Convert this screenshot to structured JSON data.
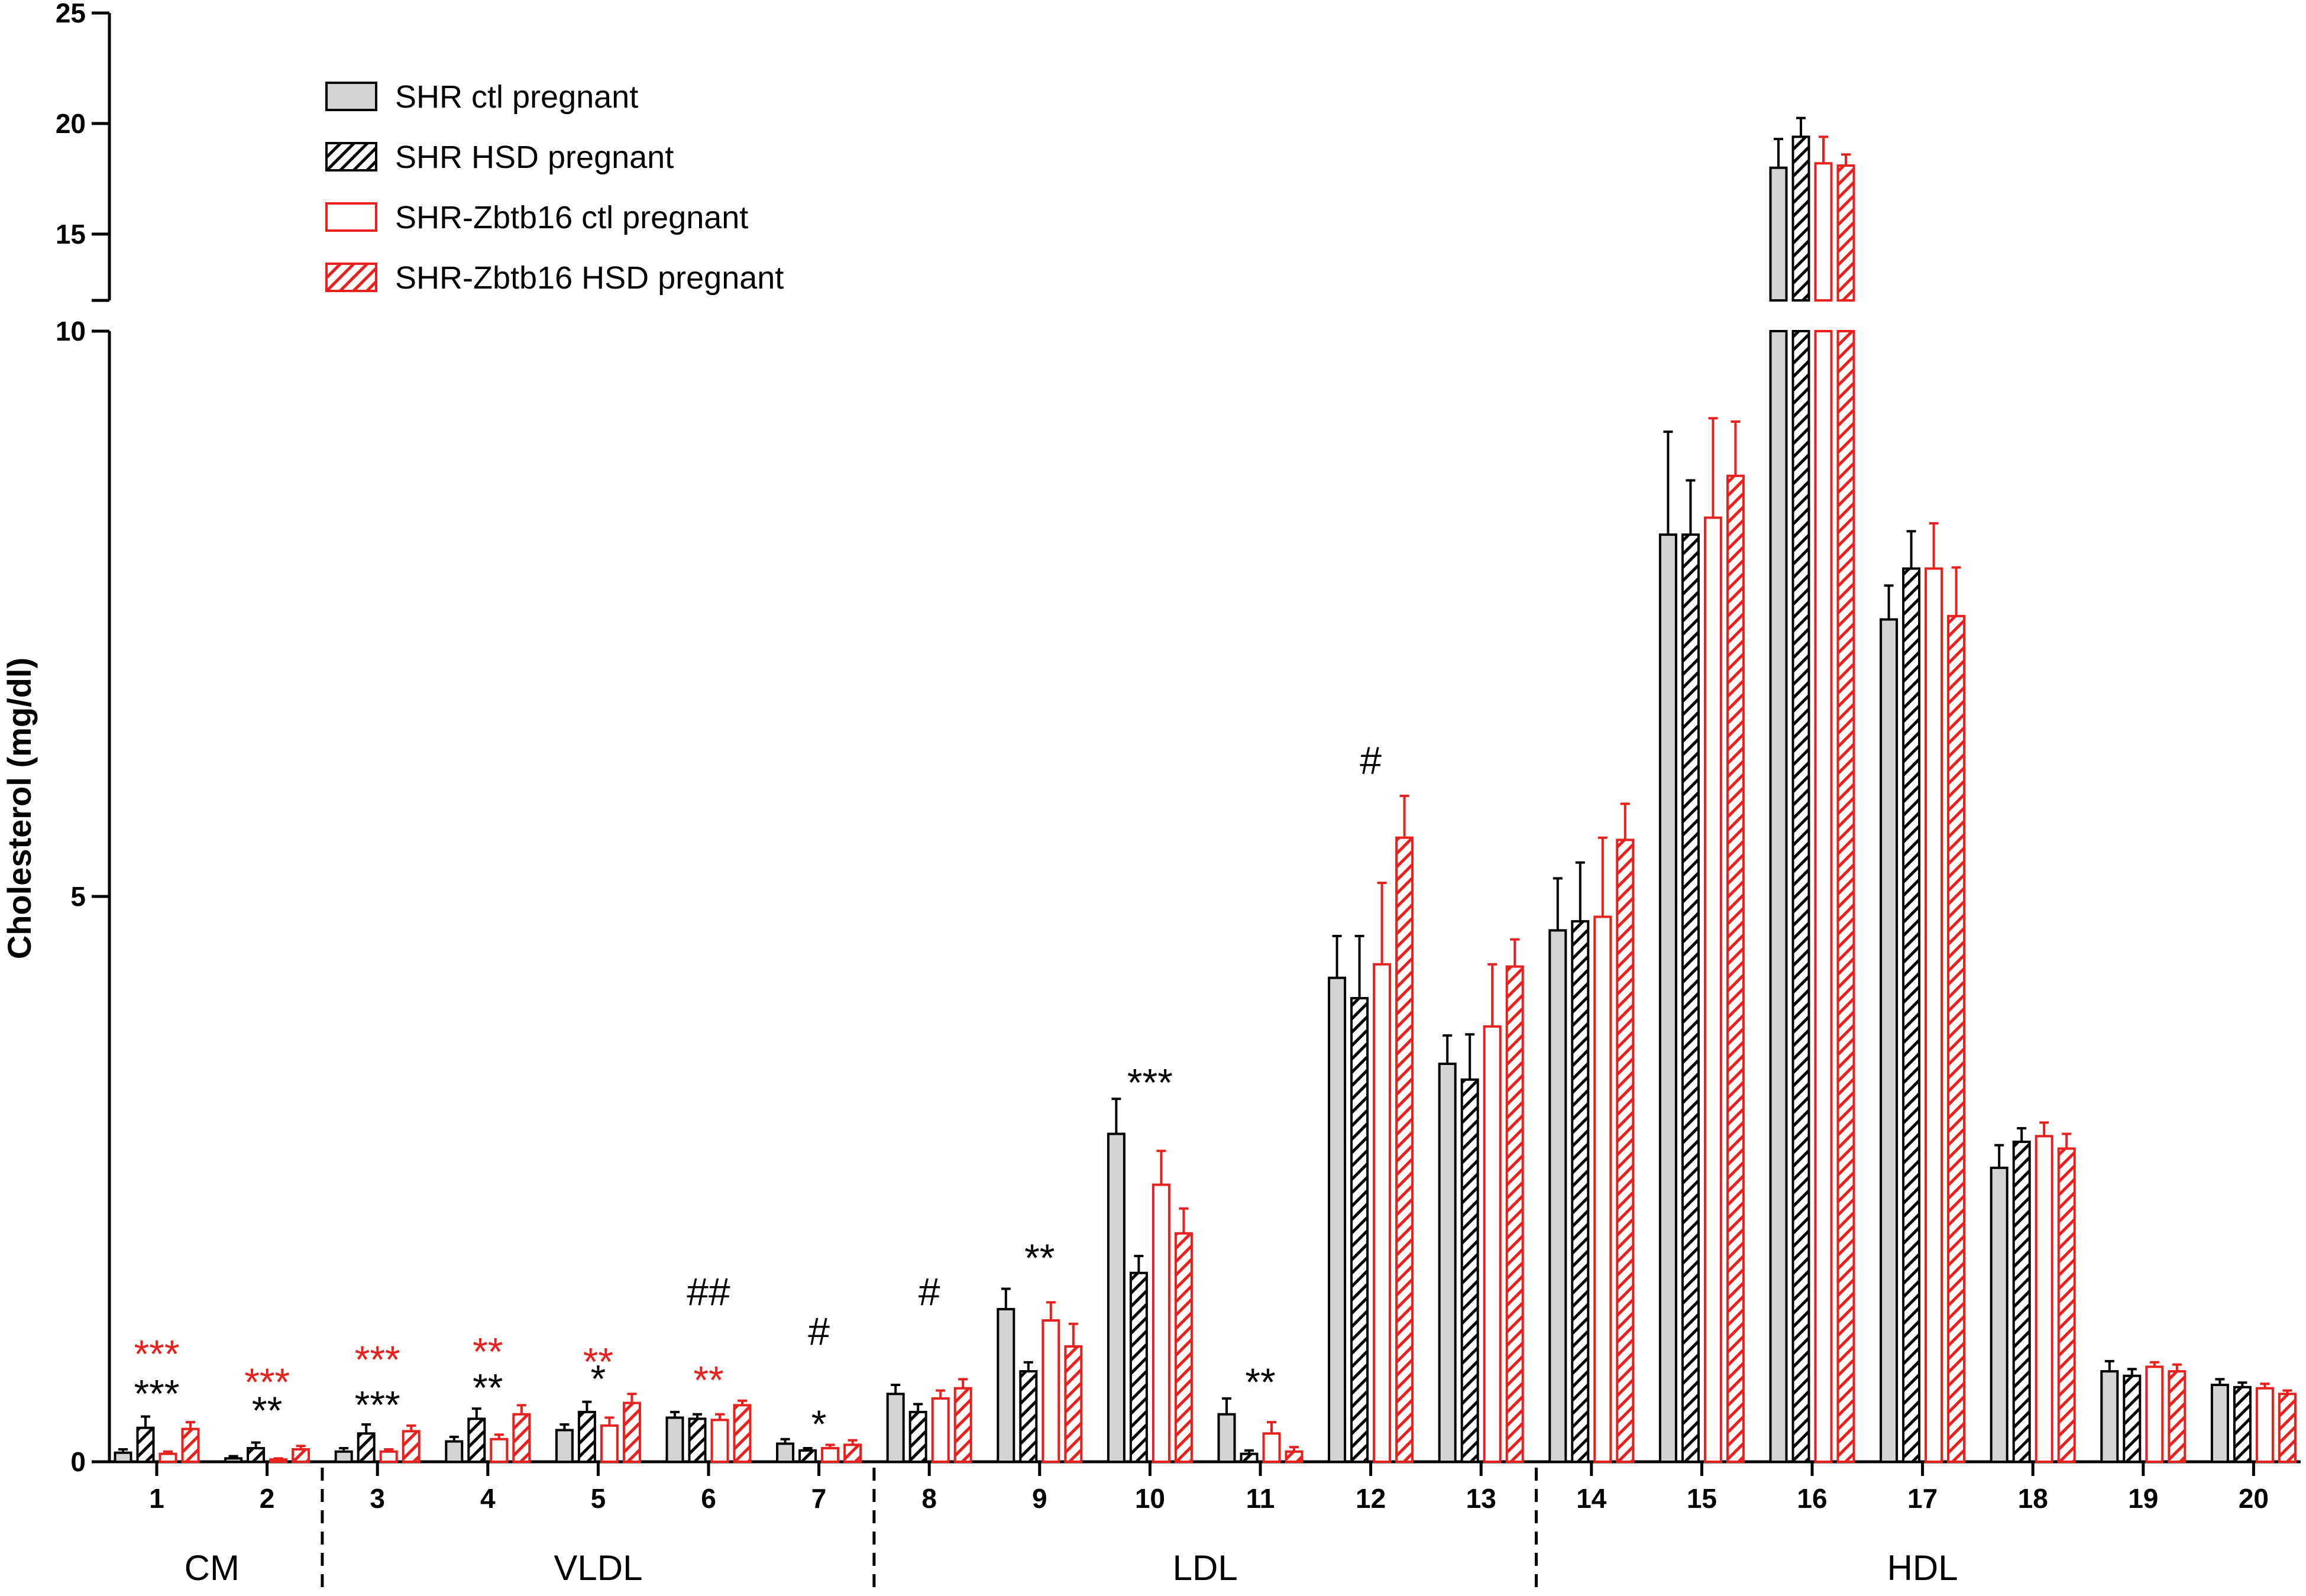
{
  "chart_data": {
    "type": "bar",
    "ylabel": "Cholesterol (mg/dl)",
    "ylim_lower": [
      0,
      10
    ],
    "ylim_upper": [
      12,
      25
    ],
    "y_ticks_lower": [
      0,
      5,
      10
    ],
    "y_ticks_upper": [
      15,
      20,
      25
    ],
    "y_tick_labels": {
      "0": "0",
      "5": "5",
      "10": "10",
      "15": "15",
      "20": "20",
      "25": "25"
    },
    "categories": [
      "1",
      "2",
      "3",
      "4",
      "5",
      "6",
      "7",
      "8",
      "9",
      "10",
      "11",
      "12",
      "13",
      "14",
      "15",
      "16",
      "17",
      "18",
      "19",
      "20"
    ],
    "series": [
      {
        "name": "SHR ctl pregnant",
        "style": "solid-gray",
        "color": "#000000",
        "values": [
          0.08,
          0.03,
          0.09,
          0.18,
          0.28,
          0.39,
          0.16,
          0.6,
          1.35,
          2.9,
          0.42,
          4.28,
          3.52,
          4.7,
          8.2,
          18.0,
          7.45,
          2.6,
          0.8,
          0.68
        ],
        "errors": [
          0.03,
          0.02,
          0.03,
          0.04,
          0.05,
          0.05,
          0.04,
          0.08,
          0.18,
          0.31,
          0.14,
          0.37,
          0.25,
          0.46,
          0.91,
          1.3,
          0.3,
          0.2,
          0.09,
          0.05
        ]
      },
      {
        "name": "SHR HSD pregnant",
        "style": "hatched-black",
        "color": "#000000",
        "values": [
          0.3,
          0.12,
          0.25,
          0.38,
          0.44,
          0.38,
          0.1,
          0.44,
          0.8,
          1.67,
          0.07,
          4.1,
          3.38,
          4.78,
          8.2,
          19.4,
          7.9,
          2.83,
          0.76,
          0.66
        ],
        "errors": [
          0.1,
          0.05,
          0.08,
          0.09,
          0.09,
          0.04,
          0.02,
          0.07,
          0.08,
          0.15,
          0.03,
          0.55,
          0.4,
          0.52,
          0.48,
          0.85,
          0.33,
          0.12,
          0.06,
          0.04
        ]
      },
      {
        "name": "SHR-Zbtb16 ctl pregnant",
        "style": "solid-white-red",
        "color": "#e8201e",
        "values": [
          0.07,
          0.02,
          0.09,
          0.2,
          0.32,
          0.37,
          0.12,
          0.56,
          1.25,
          2.45,
          0.25,
          4.4,
          3.85,
          4.82,
          8.35,
          18.2,
          7.9,
          2.88,
          0.84,
          0.65
        ],
        "errors": [
          0.02,
          0.01,
          0.02,
          0.04,
          0.07,
          0.05,
          0.03,
          0.07,
          0.16,
          0.3,
          0.1,
          0.72,
          0.55,
          0.7,
          0.88,
          1.2,
          0.4,
          0.12,
          0.04,
          0.04
        ]
      },
      {
        "name": "SHR-Zbtb16 HSD pregnant",
        "style": "hatched-red",
        "color": "#e8201e",
        "values": [
          0.29,
          0.11,
          0.27,
          0.42,
          0.52,
          0.5,
          0.15,
          0.65,
          1.02,
          2.02,
          0.09,
          5.52,
          4.38,
          5.5,
          8.72,
          18.1,
          7.48,
          2.77,
          0.8,
          0.6
        ],
        "errors": [
          0.06,
          0.03,
          0.05,
          0.08,
          0.08,
          0.04,
          0.04,
          0.08,
          0.2,
          0.22,
          0.04,
          0.37,
          0.24,
          0.32,
          0.48,
          0.5,
          0.43,
          0.13,
          0.06,
          0.03
        ]
      }
    ],
    "groups": [
      {
        "label": "CM",
        "from": 1,
        "to": 2
      },
      {
        "label": "VLDL",
        "from": 3,
        "to": 7
      },
      {
        "label": "LDL",
        "from": 8,
        "to": 13
      },
      {
        "label": "HDL",
        "from": 14,
        "to": 20
      }
    ],
    "annotations": [
      {
        "category": 1,
        "y": 0.6,
        "text": "***",
        "color": "#000000"
      },
      {
        "category": 1,
        "y": 0.95,
        "text": "***",
        "color": "#e8201e"
      },
      {
        "category": 2,
        "y": 0.45,
        "text": "**",
        "color": "#000000"
      },
      {
        "category": 2,
        "y": 0.7,
        "text": "***",
        "color": "#e8201e"
      },
      {
        "category": 3,
        "y": 0.5,
        "text": "***",
        "color": "#000000"
      },
      {
        "category": 3,
        "y": 0.9,
        "text": "***",
        "color": "#e8201e"
      },
      {
        "category": 4,
        "y": 0.65,
        "text": "**",
        "color": "#000000"
      },
      {
        "category": 4,
        "y": 0.97,
        "text": "**",
        "color": "#e8201e"
      },
      {
        "category": 5,
        "y": 0.73,
        "text": "*",
        "color": "#000000"
      },
      {
        "category": 5,
        "y": 0.88,
        "text": "**",
        "color": "#e8201e"
      },
      {
        "category": 6,
        "y": 1.5,
        "text": "##",
        "color": "#000000"
      },
      {
        "category": 6,
        "y": 0.72,
        "text": "**",
        "color": "#e8201e"
      },
      {
        "category": 7,
        "y": 0.33,
        "text": "*",
        "color": "#000000"
      },
      {
        "category": 7,
        "y": 1.15,
        "text": "#",
        "color": "#000000"
      },
      {
        "category": 8,
        "y": 1.5,
        "text": "#",
        "color": "#000000"
      },
      {
        "category": 9,
        "y": 1.8,
        "text": "**",
        "color": "#000000"
      },
      {
        "category": 10,
        "y": 3.35,
        "text": "***",
        "color": "#000000"
      },
      {
        "category": 11,
        "y": 0.7,
        "text": "**",
        "color": "#000000"
      },
      {
        "category": 12,
        "y": 6.2,
        "text": "#",
        "color": "#000000"
      }
    ]
  },
  "legend": {
    "items": [
      {
        "label": "SHR ctl pregnant"
      },
      {
        "label": "SHR HSD pregnant"
      },
      {
        "label": "SHR-Zbtb16 ctl pregnant"
      },
      {
        "label": "SHR-Zbtb16 HSD pregnant"
      }
    ]
  }
}
